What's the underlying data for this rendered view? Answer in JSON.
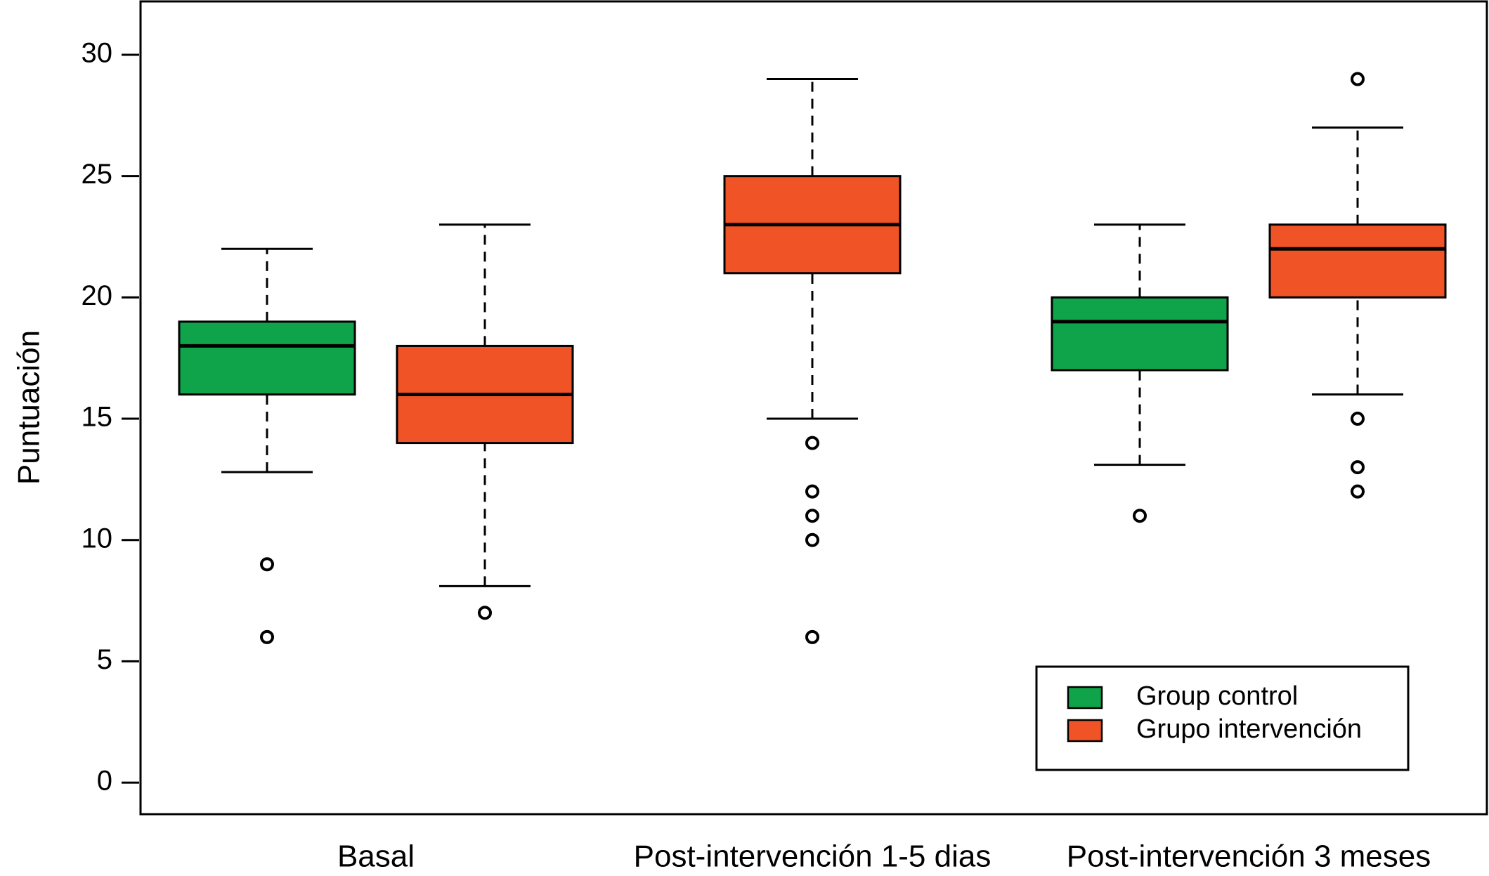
{
  "chart_data": {
    "type": "box",
    "y_label": "Puntuación",
    "categories": [
      "Basal",
      "Post-intervención 1-5 dias",
      "Post-intervención 3 meses"
    ],
    "ylim": [
      -1.3,
      32.2
    ],
    "yticks": [
      0,
      5,
      10,
      15,
      20,
      25,
      30
    ],
    "legend_position": "lower right",
    "series": [
      {
        "name": "Group control",
        "color": "#10a44a",
        "values": [
          {
            "whislo": 12.8,
            "q1": 16,
            "med": 18,
            "q3": 19,
            "whishi": 22,
            "fliers": [
              9,
              6
            ]
          },
          null,
          {
            "whislo": 13.1,
            "q1": 17,
            "med": 19,
            "q3": 20,
            "whishi": 23,
            "fliers": [
              11
            ]
          }
        ]
      },
      {
        "name": "Grupo intervención",
        "color": "#f05326",
        "values": [
          {
            "whislo": 8.1,
            "q1": 14,
            "med": 16,
            "q3": 18,
            "whishi": 23,
            "fliers": [
              7
            ]
          },
          {
            "whislo": 15,
            "q1": 21,
            "med": 23,
            "q3": 25,
            "whishi": 29,
            "fliers": [
              14,
              12,
              11,
              10,
              6
            ]
          },
          {
            "whislo": 16,
            "q1": 20,
            "med": 22,
            "q3": 23,
            "whishi": 27,
            "fliers": [
              29,
              15,
              13,
              12
            ]
          }
        ]
      }
    ]
  }
}
